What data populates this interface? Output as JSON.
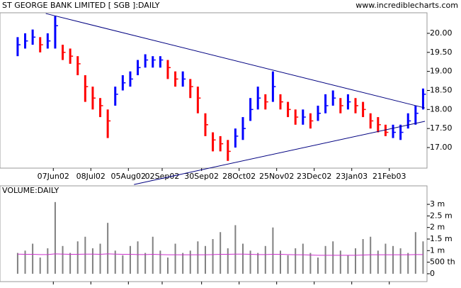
{
  "chart_data": [
    {
      "type": "ohlc",
      "title": "ST GEORGE BANK LIMITED [ SGB ]:DAILY",
      "subtitle": "www.incrediblecharts.com",
      "x": [
        0,
        4,
        8,
        12,
        16,
        20,
        24,
        28,
        32,
        36,
        40,
        44,
        48,
        52,
        56,
        60,
        64,
        68,
        72,
        76,
        80,
        84,
        88,
        92,
        96,
        100,
        104,
        108,
        112,
        116,
        120,
        124,
        128,
        132,
        136,
        140,
        144,
        148,
        152,
        156,
        160,
        164,
        168,
        172,
        176,
        180,
        184,
        188,
        192,
        196,
        200,
        204,
        208,
        212,
        216
      ],
      "close": [
        19.7,
        19.8,
        19.9,
        19.7,
        19.8,
        20.2,
        19.5,
        19.4,
        19.2,
        18.6,
        18.3,
        18.1,
        17.7,
        18.4,
        18.7,
        18.8,
        19.1,
        19.3,
        19.3,
        19.3,
        19.1,
        18.8,
        18.8,
        18.6,
        18.3,
        17.6,
        17.2,
        17.1,
        16.9,
        17.3,
        17.5,
        18.0,
        18.3,
        18.2,
        18.6,
        18.2,
        18.0,
        17.8,
        17.8,
        17.7,
        17.9,
        18.1,
        18.3,
        18.1,
        18.2,
        18.1,
        18.0,
        17.7,
        17.6,
        17.4,
        17.4,
        17.4,
        17.7,
        17.9,
        18.4
      ],
      "high": [
        19.9,
        20.0,
        20.1,
        19.9,
        20.0,
        20.45,
        19.7,
        19.6,
        19.4,
        18.9,
        18.6,
        18.3,
        18.0,
        18.6,
        18.9,
        19.0,
        19.3,
        19.45,
        19.4,
        19.4,
        19.3,
        19.0,
        19.0,
        18.8,
        18.6,
        17.9,
        17.4,
        17.3,
        17.2,
        17.5,
        17.8,
        18.3,
        18.6,
        18.4,
        19.0,
        18.4,
        18.2,
        18.0,
        18.0,
        17.9,
        18.1,
        18.4,
        18.5,
        18.3,
        18.4,
        18.3,
        18.2,
        17.9,
        17.8,
        17.6,
        17.6,
        17.6,
        17.9,
        18.1,
        18.55
      ],
      "low": [
        19.4,
        19.6,
        19.7,
        19.5,
        19.6,
        19.6,
        19.3,
        19.2,
        18.9,
        18.2,
        18.0,
        17.8,
        17.25,
        18.1,
        18.5,
        18.6,
        18.9,
        19.1,
        19.1,
        19.1,
        18.8,
        18.6,
        18.6,
        18.3,
        17.9,
        17.3,
        16.9,
        16.9,
        16.65,
        17.0,
        17.2,
        17.7,
        18.0,
        18.0,
        18.2,
        18.0,
        17.8,
        17.6,
        17.6,
        17.5,
        17.7,
        17.9,
        18.1,
        17.9,
        18.0,
        17.9,
        17.8,
        17.5,
        17.4,
        17.3,
        17.25,
        17.2,
        17.5,
        17.6,
        18.0
      ],
      "up_color": "#0000ff",
      "down_color": "#ff0000",
      "trendlines": [
        {
          "x": [
            15,
            217
          ],
          "y": [
            20.52,
            18.04
          ]
        },
        {
          "x": [
            62,
            217
          ],
          "y": [
            16.03,
            17.69
          ]
        }
      ],
      "xlim": [
        -9.4,
        218.1
      ],
      "ylim": [
        16.46,
        20.54
      ],
      "xticks": [
        {
          "value": 19,
          "label": "07Jun02"
        },
        {
          "value": 39,
          "label": "08Jul02"
        },
        {
          "value": 59,
          "label": "05Aug02"
        },
        {
          "value": 77,
          "label": "02Sep02"
        },
        {
          "value": 98,
          "label": "30Sep02"
        },
        {
          "value": 118,
          "label": "28Oct02"
        },
        {
          "value": 138,
          "label": "25Nov02"
        },
        {
          "value": 158,
          "label": "23Dec02"
        },
        {
          "value": 178,
          "label": "23Jan03"
        },
        {
          "value": 198,
          "label": "21Feb03"
        }
      ],
      "yticks": [
        {
          "value": 17,
          "label": "17.00"
        },
        {
          "value": 17.5,
          "label": "17.50"
        },
        {
          "value": 18,
          "label": "18.00"
        },
        {
          "value": 18.5,
          "label": "18.50"
        },
        {
          "value": 19,
          "label": "19.00"
        },
        {
          "value": 19.5,
          "label": "19.50"
        },
        {
          "value": 20,
          "label": "20.00"
        }
      ]
    },
    {
      "type": "bar",
      "title": "VOLUME:DAILY",
      "values": [
        0.9,
        1.0,
        1.3,
        0.7,
        1.1,
        3.1,
        1.2,
        0.9,
        1.4,
        1.6,
        1.1,
        1.3,
        2.2,
        1.0,
        0.8,
        1.2,
        1.4,
        0.9,
        1.6,
        1.0,
        0.7,
        1.3,
        0.9,
        1.0,
        1.4,
        1.2,
        1.5,
        1.8,
        1.1,
        2.1,
        1.3,
        1.0,
        0.9,
        1.2,
        2.0,
        1.0,
        0.8,
        1.1,
        1.3,
        0.9,
        0.7,
        1.2,
        1.4,
        1.0,
        0.8,
        1.1,
        1.5,
        1.6,
        1.0,
        1.3,
        1.2,
        1.1,
        0.9,
        1.8,
        1.4
      ],
      "average": [
        0.85,
        0.84,
        0.84,
        0.83,
        0.83,
        0.86,
        0.85,
        0.84,
        0.84,
        0.85,
        0.85,
        0.84,
        0.86,
        0.85,
        0.84,
        0.84,
        0.83,
        0.83,
        0.84,
        0.83,
        0.82,
        0.82,
        0.82,
        0.82,
        0.82,
        0.82,
        0.83,
        0.84,
        0.84,
        0.85,
        0.85,
        0.84,
        0.83,
        0.83,
        0.84,
        0.84,
        0.83,
        0.82,
        0.82,
        0.81,
        0.8,
        0.8,
        0.8,
        0.8,
        0.8,
        0.8,
        0.81,
        0.82,
        0.82,
        0.82,
        0.82,
        0.82,
        0.82,
        0.83,
        0.83
      ],
      "color": "#808080",
      "average_color": "#cc33cc",
      "ylim": [
        -0.34,
        3.8
      ],
      "yticks": [
        0,
        {
          "value": 0.5,
          "label": "500 th"
        },
        {
          "value": 1,
          "label": "1 m"
        },
        {
          "value": 1.5,
          "label": "1.5 m"
        },
        {
          "value": 2,
          "label": "2 m"
        },
        {
          "value": 2.5,
          "label": "2.5 m"
        },
        {
          "value": 3,
          "label": "3 m"
        }
      ]
    }
  ]
}
